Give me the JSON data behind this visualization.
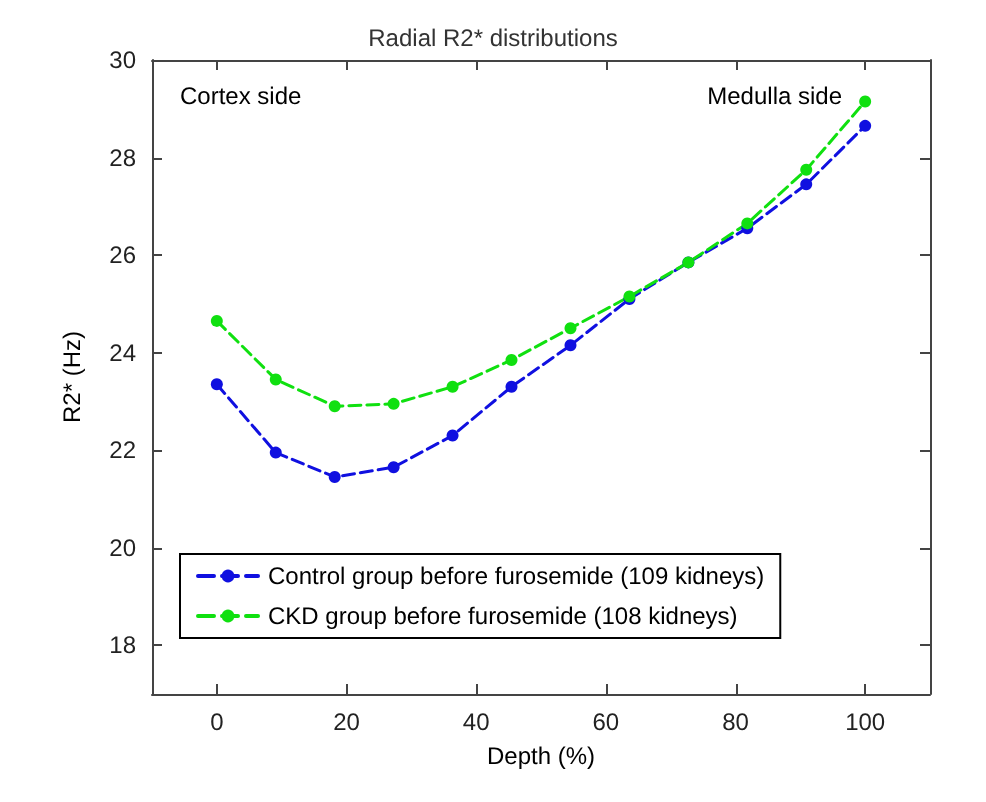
{
  "chart_data": {
    "type": "line",
    "title": "Radial R2* distributions",
    "xlabel": "Depth (%)",
    "ylabel": "R2* (Hz)",
    "x": [
      0,
      9.09,
      18.18,
      27.27,
      36.36,
      45.45,
      54.55,
      63.64,
      72.73,
      81.82,
      90.91,
      100
    ],
    "series": [
      {
        "name": "Control group before furosemide (109 kidneys)",
        "color": "#1010e0",
        "values": [
          23.35,
          21.95,
          21.45,
          21.65,
          22.3,
          23.3,
          24.15,
          25.1,
          25.85,
          26.55,
          27.45,
          28.65
        ]
      },
      {
        "name": "CKD group before furosemide (108 kidneys)",
        "color": "#10e010",
        "values": [
          24.65,
          23.45,
          22.9,
          22.95,
          23.3,
          23.85,
          24.5,
          25.15,
          25.85,
          26.65,
          27.75,
          29.15
        ]
      }
    ],
    "xlim": [
      -10,
      110
    ],
    "xticks": [
      0,
      20,
      40,
      60,
      80,
      100
    ],
    "ylim": [
      17,
      30
    ],
    "yticks": [
      18,
      20,
      22,
      24,
      26,
      28,
      30
    ],
    "annotations": [
      "Cortex side",
      "Medulla side"
    ],
    "grid": false,
    "legend": "bottom left",
    "marker": "circle",
    "line_style": "dashed"
  }
}
